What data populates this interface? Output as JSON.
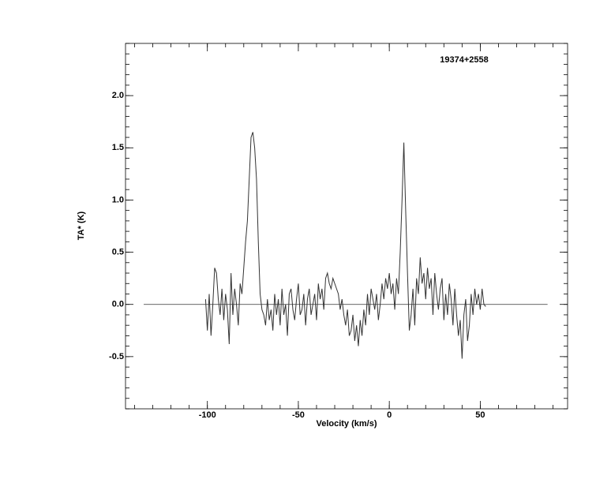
{
  "chart_data": {
    "type": "line",
    "title": "19374+2558",
    "x_label": "Velocity (km/s)",
    "y_label": "TA* (K)",
    "xlim": [
      -145,
      98
    ],
    "ylim": [
      -1.0,
      2.5
    ],
    "xticks": [
      -100,
      -50,
      0,
      50
    ],
    "yticks": [
      {
        "value": -0.5,
        "label": "-0.5"
      },
      {
        "value": 0,
        "label": "0.0"
      },
      {
        "value": 0.5,
        "label": "0.5"
      },
      {
        "value": 1,
        "label": "1.0"
      },
      {
        "value": 1.5,
        "label": "1.5"
      },
      {
        "value": 2,
        "label": "2.0"
      }
    ],
    "x_minor_step": 10,
    "y_minor_step": 0.1,
    "baseline": {
      "y": 0,
      "x": [
        -135,
        87
      ]
    },
    "color": "#333333",
    "x": [
      -101,
      -100,
      -99,
      -98,
      -97,
      -96,
      -95,
      -94,
      -93,
      -92,
      -91,
      -90,
      -89,
      -88,
      -87,
      -86,
      -85,
      -84,
      -83,
      -82,
      -81,
      -80,
      -79,
      -78,
      -77,
      -76,
      -75,
      -74,
      -73,
      -72,
      -71,
      -70,
      -69,
      -68,
      -67,
      -66,
      -65,
      -64,
      -63,
      -62,
      -61,
      -60,
      -59,
      -58,
      -57,
      -56,
      -55,
      -54,
      -53,
      -52,
      -51,
      -50,
      -49,
      -48,
      -47,
      -46,
      -45,
      -44,
      -43,
      -42,
      -41,
      -40,
      -39,
      -38,
      -37,
      -36,
      -35,
      -34,
      -33,
      -32,
      -31,
      -30,
      -29,
      -28,
      -27,
      -26,
      -25,
      -24,
      -23,
      -22,
      -21,
      -20,
      -19,
      -18,
      -17,
      -16,
      -15,
      -14,
      -13,
      -12,
      -11,
      -10,
      -9,
      -8,
      -7,
      -6,
      -5,
      -4,
      -3,
      -2,
      -1,
      0,
      1,
      2,
      3,
      4,
      5,
      6,
      7,
      8,
      9,
      10,
      11,
      12,
      13,
      14,
      15,
      16,
      17,
      18,
      19,
      20,
      21,
      22,
      23,
      24,
      25,
      26,
      27,
      28,
      29,
      30,
      31,
      32,
      33,
      34,
      35,
      36,
      37,
      38,
      39,
      40,
      41,
      42,
      43,
      44,
      45,
      46,
      47,
      48,
      49,
      50,
      51,
      52,
      53
    ],
    "values": [
      0.05,
      -0.25,
      0.1,
      -0.3,
      0.0,
      0.35,
      0.3,
      0.05,
      -0.1,
      0.15,
      -0.15,
      0.1,
      -0.05,
      -0.38,
      0.3,
      -0.1,
      0.15,
      0.0,
      -0.2,
      0.2,
      0.1,
      0.35,
      0.6,
      0.8,
      1.2,
      1.6,
      1.65,
      1.5,
      1.2,
      0.6,
      0.1,
      -0.05,
      -0.1,
      -0.2,
      0.05,
      -0.15,
      -0.05,
      -0.25,
      0.1,
      -0.1,
      0.05,
      -0.2,
      0.15,
      -0.1,
      0.0,
      -0.3,
      0.1,
      0.15,
      -0.05,
      -0.15,
      0.05,
      0.2,
      -0.1,
      -0.05,
      0.1,
      -0.2,
      0.05,
      0.15,
      -0.1,
      0.0,
      0.1,
      -0.15,
      0.2,
      0.05,
      0.15,
      -0.05,
      0.25,
      0.3,
      0.2,
      0.15,
      0.25,
      0.2,
      0.15,
      0.1,
      -0.05,
      0.05,
      -0.1,
      -0.2,
      -0.05,
      -0.3,
      -0.25,
      -0.1,
      -0.35,
      -0.2,
      -0.4,
      -0.15,
      -0.3,
      -0.05,
      -0.2,
      0.1,
      -0.1,
      0.15,
      0.05,
      -0.05,
      0.1,
      -0.15,
      0.0,
      0.2,
      0.05,
      0.25,
      0.15,
      0.3,
      0.1,
      0.2,
      -0.05,
      0.25,
      0.1,
      0.5,
      1.0,
      1.55,
      0.9,
      0.3,
      -0.25,
      -0.1,
      0.15,
      -0.2,
      0.25,
      0.1,
      0.45,
      0.2,
      0.3,
      0.05,
      0.35,
      0.15,
      0.25,
      -0.1,
      0.3,
      0.1,
      -0.05,
      0.15,
      0.25,
      -0.15,
      0.1,
      -0.1,
      0.2,
      0.05,
      -0.2,
      0.15,
      -0.1,
      -0.3,
      -0.15,
      -0.52,
      -0.1,
      0.05,
      -0.35,
      -0.2,
      0.1,
      -0.1,
      0.15,
      0.0,
      0.1,
      -0.05,
      0.15,
      0.0,
      -0.02
    ]
  }
}
